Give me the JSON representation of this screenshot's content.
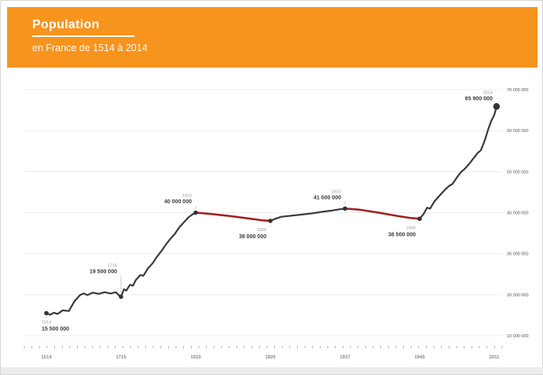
{
  "header": {
    "title": "Population",
    "subtitle": "en France de 1514 à 2014",
    "accent_color": "#F7941E",
    "text_color": "#FFFFFF"
  },
  "chart_data": {
    "type": "line",
    "title": "Population en France de 1514 à 2014",
    "x_axis": {
      "labels": [
        "1514",
        "1715",
        "1910",
        "1920",
        "1937",
        "1945",
        "2011"
      ],
      "minor_tick_count": 64
    },
    "y_axis": {
      "tick_labels": [
        "70 000 000",
        "60 000 000",
        "50 000 000",
        "40 000 000",
        "30 000 000",
        "20 000 000",
        "10 000 000"
      ],
      "tick_values_millions": [
        70,
        60,
        50,
        40,
        30,
        20,
        10
      ],
      "range_millions": [
        10,
        72
      ],
      "grid": true,
      "position": "right"
    },
    "legend": "none",
    "line_color": "#3b3b3b",
    "decline_color": "#A32020",
    "grid_color": "#e7e7e7",
    "axis_text_color": "#8a8a8a",
    "annotation_value_color": "#3a3a3a",
    "annotation_year_color": "#9a9a9a",
    "milestones": [
      {
        "year": "1514",
        "value_label": "15 500 000",
        "value": 15.5,
        "pos": 0,
        "label_side": "below",
        "align": "start"
      },
      {
        "year": "1715",
        "value_label": "19 500 000",
        "value": 19.5,
        "pos": 1,
        "label_side": "above",
        "label_dy": -30
      },
      {
        "year": "1910",
        "value_label": "40 000 000",
        "value": 40,
        "pos": 2,
        "label_side": "above"
      },
      {
        "year": "1920",
        "value_label": "38 000 000",
        "value": 38,
        "pos": 3,
        "label_side": "below"
      },
      {
        "year": "1937",
        "value_label": "41 000 000",
        "value": 41,
        "pos": 4,
        "label_side": "above"
      },
      {
        "year": "1945",
        "value_label": "38 500 000",
        "value": 38.5,
        "pos": 5,
        "label_side": "below"
      },
      {
        "year": "2014",
        "value_label": "65 900 000",
        "value": 65.9,
        "pos": 6.03,
        "label_side": "above",
        "emphasis": true
      }
    ],
    "decline_segments": [
      {
        "from_pos": 2,
        "to_pos": 3,
        "note": "WWI decline"
      },
      {
        "from_pos": 4,
        "to_pos": 5,
        "note": "WWII decline"
      }
    ],
    "series": [
      {
        "name": "population-millions",
        "points": [
          [
            0,
            15.5
          ],
          [
            0.05,
            15.1
          ],
          [
            0.1,
            15.6
          ],
          [
            0.15,
            15.3
          ],
          [
            0.22,
            16.2
          ],
          [
            0.3,
            16.0
          ],
          [
            0.38,
            18.5
          ],
          [
            0.45,
            19.9
          ],
          [
            0.5,
            20.3
          ],
          [
            0.55,
            19.9
          ],
          [
            0.62,
            20.5
          ],
          [
            0.7,
            20.2
          ],
          [
            0.78,
            20.6
          ],
          [
            0.86,
            20.3
          ],
          [
            0.93,
            20.6
          ],
          [
            0.97,
            19.9
          ],
          [
            1,
            19.5
          ],
          [
            1.04,
            21.3
          ],
          [
            1.07,
            21.0
          ],
          [
            1.12,
            22.4
          ],
          [
            1.16,
            22.2
          ],
          [
            1.2,
            23.6
          ],
          [
            1.26,
            24.8
          ],
          [
            1.3,
            24.6
          ],
          [
            1.36,
            26.4
          ],
          [
            1.42,
            27.6
          ],
          [
            1.48,
            29.2
          ],
          [
            1.54,
            30.6
          ],
          [
            1.6,
            32.2
          ],
          [
            1.66,
            33.6
          ],
          [
            1.72,
            34.8
          ],
          [
            1.78,
            36.4
          ],
          [
            1.84,
            37.6
          ],
          [
            1.9,
            38.8
          ],
          [
            1.95,
            39.5
          ],
          [
            2,
            40
          ],
          [
            2.2,
            39.7
          ],
          [
            2.45,
            39.2
          ],
          [
            2.7,
            38.6
          ],
          [
            2.9,
            38.1
          ],
          [
            3,
            38
          ],
          [
            3.08,
            38.6
          ],
          [
            3.15,
            39.0
          ],
          [
            3.25,
            39.2
          ],
          [
            3.4,
            39.5
          ],
          [
            3.55,
            39.8
          ],
          [
            3.7,
            40.2
          ],
          [
            3.82,
            40.5
          ],
          [
            3.92,
            40.8
          ],
          [
            4,
            41
          ],
          [
            4.2,
            40.7
          ],
          [
            4.45,
            40.0
          ],
          [
            4.7,
            39.2
          ],
          [
            4.88,
            38.7
          ],
          [
            5,
            38.5
          ],
          [
            5.05,
            39.6
          ],
          [
            5.1,
            41.2
          ],
          [
            5.14,
            41.0
          ],
          [
            5.2,
            42.8
          ],
          [
            5.28,
            44.4
          ],
          [
            5.34,
            45.6
          ],
          [
            5.4,
            46.6
          ],
          [
            5.44,
            47.0
          ],
          [
            5.5,
            48.6
          ],
          [
            5.56,
            50.0
          ],
          [
            5.6,
            50.6
          ],
          [
            5.66,
            51.8
          ],
          [
            5.72,
            53.2
          ],
          [
            5.78,
            54.6
          ],
          [
            5.82,
            55.2
          ],
          [
            5.86,
            57.0
          ],
          [
            5.89,
            58.6
          ],
          [
            5.92,
            60.4
          ],
          [
            5.96,
            62.4
          ],
          [
            6.0,
            63.8
          ],
          [
            6.03,
            65.9
          ]
        ]
      }
    ]
  }
}
